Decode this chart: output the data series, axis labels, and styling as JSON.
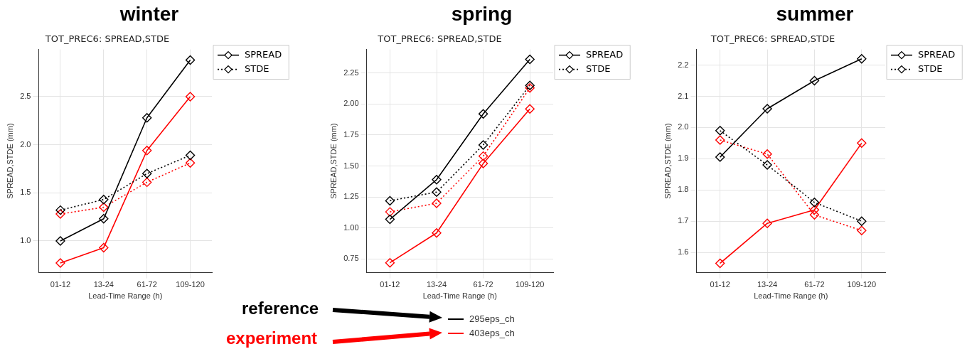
{
  "chart_data": [
    {
      "type": "line",
      "title": "winter",
      "subtitle": "TOT_PREC6: SPREAD,STDE",
      "xlabel": "Lead-Time Range (h)",
      "ylabel": "SPREAD,STDE (mm)",
      "categories": [
        "01-12",
        "13-24",
        "61-72",
        "109-120"
      ],
      "ylim": [
        0.67,
        2.99
      ],
      "yticks": [
        {
          "value": 1,
          "label": "1.0"
        },
        2.5,
        {
          "value": 2,
          "label": "2.0"
        },
        1.5
      ],
      "grid": true,
      "legend": "top right",
      "marker": "diamond",
      "series": [
        {
          "name": "SPREAD",
          "color": "#000000",
          "line_style": "solid",
          "values": [
            1.0,
            1.23,
            2.28,
            2.88
          ]
        },
        {
          "name": "STDE",
          "color": "#000000",
          "line_style": "dotted",
          "values": [
            1.32,
            1.43,
            1.7,
            1.89
          ]
        },
        {
          "color": "#ff0000",
          "line_style": "solid",
          "values": [
            0.77,
            0.93,
            1.94,
            2.5
          ]
        },
        {
          "color": "#ff0000",
          "line_style": "dotted",
          "values": [
            1.28,
            1.35,
            1.61,
            1.81
          ]
        }
      ]
    },
    {
      "type": "line",
      "title": "spring",
      "subtitle": "TOT_PREC6: SPREAD,STDE",
      "xlabel": "Lead-Time Range (h)",
      "ylabel": "SPREAD,STDE (mm)",
      "categories": [
        "01-12",
        "13-24",
        "61-72",
        "109-120"
      ],
      "ylim": [
        0.64,
        2.44
      ],
      "yticks": [
        0.75,
        {
          "value": 1,
          "label": "1.00"
        },
        1.25,
        {
          "value": 1.5,
          "label": "1.50"
        },
        1.75,
        {
          "value": 2,
          "label": "2.00"
        },
        2.25
      ],
      "grid": true,
      "legend": "top right",
      "marker": "diamond",
      "annotations": [
        "reference",
        "experiment",
        "295eps_ch",
        "403eps_ch"
      ],
      "series": [
        {
          "name": "SPREAD",
          "color": "#000000",
          "line_style": "solid",
          "values": [
            1.07,
            1.39,
            1.92,
            2.36
          ]
        },
        {
          "name": "STDE",
          "color": "#000000",
          "line_style": "dotted",
          "values": [
            1.22,
            1.29,
            1.67,
            2.15
          ]
        },
        {
          "color": "#ff0000",
          "line_style": "solid",
          "values": [
            0.72,
            0.96,
            1.52,
            1.96
          ]
        },
        {
          "color": "#ff0000",
          "line_style": "dotted",
          "values": [
            1.13,
            1.2,
            1.58,
            2.13
          ]
        }
      ]
    },
    {
      "type": "line",
      "title": "summer",
      "subtitle": "TOT_PREC6: SPREAD,STDE",
      "xlabel": "Lead-Time Range (h)",
      "ylabel": "SPREAD,STDE (mm)",
      "categories": [
        "01-12",
        "13-24",
        "61-72",
        "109-120"
      ],
      "ylim": [
        1.535,
        2.25
      ],
      "yticks": [
        1.6,
        1.7,
        1.8,
        1.9,
        {
          "value": 2,
          "label": "2.0"
        },
        2.1,
        2.2
      ],
      "grid": true,
      "legend": "top right",
      "marker": "diamond",
      "series": [
        {
          "name": "SPREAD",
          "color": "#000000",
          "line_style": "solid",
          "values": [
            1.905,
            2.06,
            2.15,
            2.22
          ]
        },
        {
          "name": "STDE",
          "color": "#000000",
          "line_style": "dotted",
          "values": [
            1.99,
            1.88,
            1.76,
            1.7
          ]
        },
        {
          "color": "#ff0000",
          "line_style": "solid",
          "values": [
            1.565,
            1.693,
            1.736,
            1.95
          ]
        },
        {
          "color": "#ff0000",
          "line_style": "dotted",
          "values": [
            1.96,
            1.915,
            1.72,
            1.67
          ]
        }
      ]
    }
  ]
}
